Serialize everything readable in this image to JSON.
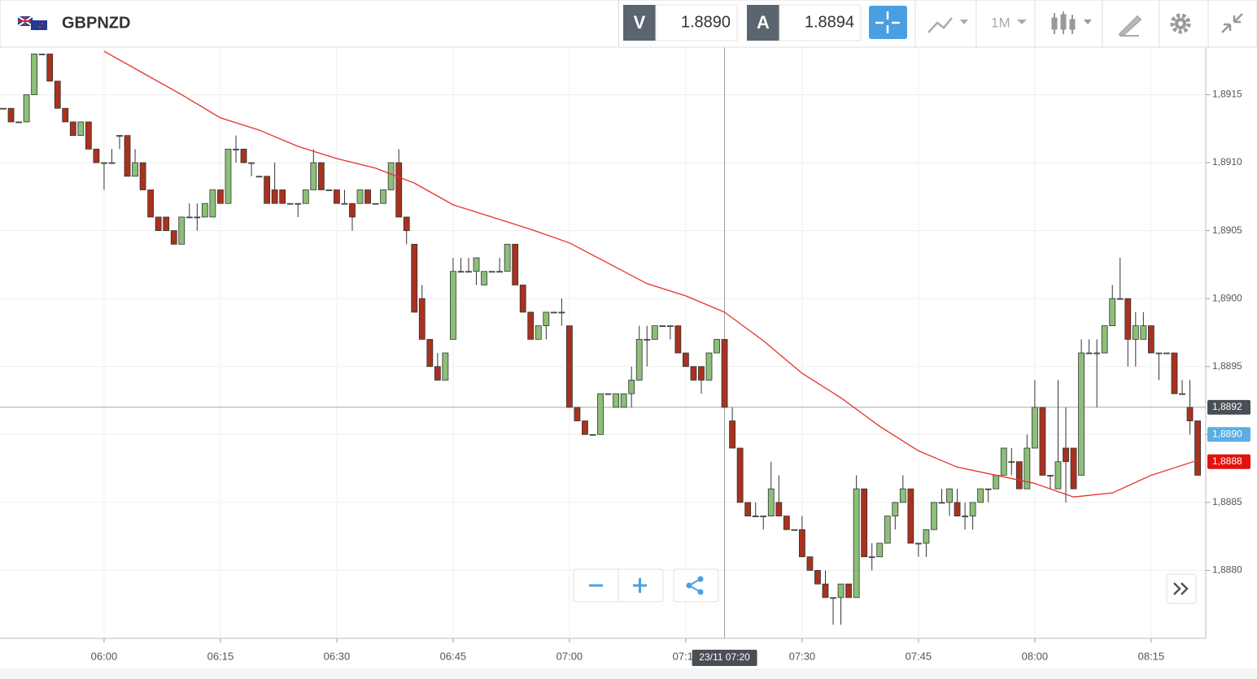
{
  "toolbar": {
    "symbol": "GBPNZD",
    "bid_label": "V",
    "bid": "1.8890",
    "ask_label": "A",
    "ask": "1.8894",
    "timeframe": "1M"
  },
  "chart_data": {
    "type": "candlestick",
    "up_color": "#8cbf78",
    "down_color": "#a8321f",
    "grid": true,
    "ylim": [
      1.8875,
      1.89185
    ],
    "yticks": [
      {
        "value": 1.888,
        "label": "1,8880"
      },
      {
        "value": 1.8885,
        "label": "1,8885"
      },
      {
        "value": 1.889,
        "label": "1,8890"
      },
      {
        "value": 1.8895,
        "label": "1,8895"
      },
      {
        "value": 1.89,
        "label": "1,8900"
      },
      {
        "value": 1.8905,
        "label": "1,8905"
      },
      {
        "value": 1.891,
        "label": "1,8910"
      },
      {
        "value": 1.8915,
        "label": "1,8915"
      }
    ],
    "xticks": [
      "06:00",
      "06:15",
      "06:30",
      "06:45",
      "07:00",
      "07:15",
      "07:30",
      "07:45",
      "08:00",
      "08:15"
    ],
    "x": [
      "05:47",
      "05:48",
      "05:49",
      "05:50",
      "05:51",
      "05:52",
      "05:53",
      "05:54",
      "05:55",
      "05:56",
      "05:57",
      "05:58",
      "05:59",
      "06:00",
      "06:01",
      "06:02",
      "06:03",
      "06:04",
      "06:05",
      "06:06",
      "06:07",
      "06:08",
      "06:09",
      "06:10",
      "06:11",
      "06:12",
      "06:13",
      "06:14",
      "06:15",
      "06:16",
      "06:17",
      "06:18",
      "06:19",
      "06:20",
      "06:21",
      "06:22",
      "06:23",
      "06:24",
      "06:25",
      "06:26",
      "06:27",
      "06:28",
      "06:29",
      "06:30",
      "06:31",
      "06:32",
      "06:33",
      "06:34",
      "06:35",
      "06:36",
      "06:37",
      "06:38",
      "06:39",
      "06:40",
      "06:41",
      "06:42",
      "06:43",
      "06:44",
      "06:45",
      "06:46",
      "06:47",
      "06:48",
      "06:49",
      "06:50",
      "06:51",
      "06:52",
      "06:53",
      "06:54",
      "06:55",
      "06:56",
      "06:57",
      "06:58",
      "06:59",
      "07:00",
      "07:01",
      "07:02",
      "07:03",
      "07:04",
      "07:05",
      "07:06",
      "07:07",
      "07:08",
      "07:09",
      "07:10",
      "07:11",
      "07:12",
      "07:13",
      "07:14",
      "07:15",
      "07:16",
      "07:17",
      "07:18",
      "07:19",
      "07:20",
      "07:21",
      "07:22",
      "07:23",
      "07:24",
      "07:25",
      "07:26",
      "07:27",
      "07:28",
      "07:29",
      "07:30",
      "07:31",
      "07:32",
      "07:33",
      "07:34",
      "07:35",
      "07:36",
      "07:37",
      "07:38",
      "07:39",
      "07:40",
      "07:41",
      "07:42",
      "07:43",
      "07:44",
      "07:45",
      "07:46",
      "07:47",
      "07:48",
      "07:49",
      "07:50",
      "07:51",
      "07:52",
      "07:53",
      "07:54",
      "07:55",
      "07:56",
      "07:57",
      "07:58",
      "07:59",
      "08:00",
      "08:01",
      "08:02",
      "08:03",
      "08:04",
      "08:05",
      "08:06",
      "08:07",
      "08:08",
      "08:09",
      "08:10",
      "08:11",
      "08:12",
      "08:13",
      "08:14",
      "08:15",
      "08:16",
      "08:17",
      "08:18",
      "08:19",
      "08:20",
      "08:21"
    ],
    "ohlc": [
      [
        1.8914,
        1.8914,
        1.8914,
        1.8914
      ],
      [
        1.8914,
        1.8914,
        1.8913,
        1.8913
      ],
      [
        1.8913,
        1.8913,
        1.8913,
        1.8913
      ],
      [
        1.8913,
        1.8915,
        1.8913,
        1.8915
      ],
      [
        1.8915,
        1.8918,
        1.8915,
        1.8918
      ],
      [
        1.8918,
        1.8918,
        1.8918,
        1.8918
      ],
      [
        1.8918,
        1.8918,
        1.8916,
        1.8916
      ],
      [
        1.8916,
        1.8916,
        1.8914,
        1.8914
      ],
      [
        1.8914,
        1.8914,
        1.8913,
        1.8913
      ],
      [
        1.8913,
        1.8913,
        1.8912,
        1.8912
      ],
      [
        1.8912,
        1.8913,
        1.8912,
        1.8913
      ],
      [
        1.8913,
        1.8913,
        1.8911,
        1.8911
      ],
      [
        1.8911,
        1.8911,
        1.891,
        1.891
      ],
      [
        1.891,
        1.891,
        1.8908,
        1.891
      ],
      [
        1.891,
        1.8911,
        1.891,
        1.891
      ],
      [
        1.8912,
        1.8912,
        1.8911,
        1.8912
      ],
      [
        1.8912,
        1.8912,
        1.8909,
        1.8909
      ],
      [
        1.8909,
        1.8911,
        1.8909,
        1.891
      ],
      [
        1.891,
        1.891,
        1.8908,
        1.8908
      ],
      [
        1.8908,
        1.8908,
        1.8906,
        1.8906
      ],
      [
        1.8906,
        1.8906,
        1.8905,
        1.8905
      ],
      [
        1.8906,
        1.8906,
        1.8905,
        1.8905
      ],
      [
        1.8905,
        1.8905,
        1.8904,
        1.8904
      ],
      [
        1.8904,
        1.8906,
        1.8904,
        1.8906
      ],
      [
        1.8906,
        1.8907,
        1.8906,
        1.8906
      ],
      [
        1.8906,
        1.8907,
        1.8905,
        1.8906
      ],
      [
        1.8906,
        1.8907,
        1.8906,
        1.8907
      ],
      [
        1.8906,
        1.8908,
        1.8906,
        1.8908
      ],
      [
        1.8908,
        1.8908,
        1.8907,
        1.8907
      ],
      [
        1.8907,
        1.8911,
        1.8907,
        1.8911
      ],
      [
        1.8911,
        1.8912,
        1.891,
        1.8911
      ],
      [
        1.8911,
        1.8911,
        1.891,
        1.891
      ],
      [
        1.891,
        1.891,
        1.8909,
        1.891
      ],
      [
        1.8909,
        1.8909,
        1.8909,
        1.8909
      ],
      [
        1.8909,
        1.8909,
        1.8907,
        1.8907
      ],
      [
        1.8908,
        1.891,
        1.8907,
        1.8907
      ],
      [
        1.8908,
        1.8908,
        1.8907,
        1.8907
      ],
      [
        1.8907,
        1.8907,
        1.8907,
        1.8907
      ],
      [
        1.8907,
        1.8907,
        1.8906,
        1.8907
      ],
      [
        1.8907,
        1.8908,
        1.8907,
        1.8908
      ],
      [
        1.8908,
        1.8911,
        1.8908,
        1.891
      ],
      [
        1.891,
        1.891,
        1.8908,
        1.8908
      ],
      [
        1.8908,
        1.8908,
        1.8908,
        1.8908
      ],
      [
        1.8908,
        1.8908,
        1.8907,
        1.8907
      ],
      [
        1.8907,
        1.8908,
        1.8907,
        1.8907
      ],
      [
        1.8907,
        1.8907,
        1.8905,
        1.8906
      ],
      [
        1.8907,
        1.8908,
        1.8907,
        1.8908
      ],
      [
        1.8908,
        1.8908,
        1.8907,
        1.8907
      ],
      [
        1.8907,
        1.8907,
        1.8907,
        1.8907
      ],
      [
        1.8907,
        1.8908,
        1.8907,
        1.8908
      ],
      [
        1.8908,
        1.891,
        1.8908,
        1.891
      ],
      [
        1.891,
        1.8911,
        1.8906,
        1.8906
      ],
      [
        1.8906,
        1.8906,
        1.8904,
        1.8905
      ],
      [
        1.8904,
        1.8904,
        1.8899,
        1.8899
      ],
      [
        1.89,
        1.8901,
        1.8897,
        1.8897
      ],
      [
        1.8897,
        1.8897,
        1.8895,
        1.8895
      ],
      [
        1.8895,
        1.8896,
        1.8894,
        1.8894
      ],
      [
        1.8894,
        1.8896,
        1.8894,
        1.8896
      ],
      [
        1.8897,
        1.8903,
        1.8897,
        1.8902
      ],
      [
        1.8902,
        1.8903,
        1.8902,
        1.8902
      ],
      [
        1.8902,
        1.8903,
        1.8902,
        1.8902
      ],
      [
        1.8902,
        1.8903,
        1.8901,
        1.8903
      ],
      [
        1.8901,
        1.8902,
        1.8901,
        1.8902
      ],
      [
        1.8902,
        1.8902,
        1.8902,
        1.8902
      ],
      [
        1.8902,
        1.8903,
        1.8902,
        1.8902
      ],
      [
        1.8902,
        1.8904,
        1.8902,
        1.8904
      ],
      [
        1.8904,
        1.8904,
        1.8901,
        1.8901
      ],
      [
        1.8901,
        1.8901,
        1.8899,
        1.8899
      ],
      [
        1.8899,
        1.8899,
        1.8897,
        1.8897
      ],
      [
        1.8897,
        1.8898,
        1.8897,
        1.8898
      ],
      [
        1.8898,
        1.8899,
        1.8897,
        1.8899
      ],
      [
        1.8899,
        1.8899,
        1.8899,
        1.8899
      ],
      [
        1.8899,
        1.89,
        1.8898,
        1.8899
      ],
      [
        1.8898,
        1.8898,
        1.8892,
        1.8892
      ],
      [
        1.8892,
        1.8892,
        1.8891,
        1.8891
      ],
      [
        1.8891,
        1.8891,
        1.889,
        1.889
      ],
      [
        1.889,
        1.889,
        1.889,
        1.889
      ],
      [
        1.889,
        1.8893,
        1.889,
        1.8893
      ],
      [
        1.8893,
        1.8893,
        1.8893,
        1.8893
      ],
      [
        1.8892,
        1.8893,
        1.8892,
        1.8893
      ],
      [
        1.8892,
        1.8893,
        1.8892,
        1.8893
      ],
      [
        1.8893,
        1.8895,
        1.8892,
        1.8894
      ],
      [
        1.8894,
        1.8898,
        1.8894,
        1.8897
      ],
      [
        1.8897,
        1.8898,
        1.8895,
        1.8897
      ],
      [
        1.8897,
        1.8898,
        1.8897,
        1.8898
      ],
      [
        1.8898,
        1.8898,
        1.8898,
        1.8898
      ],
      [
        1.8898,
        1.8898,
        1.8897,
        1.8898
      ],
      [
        1.8898,
        1.8898,
        1.8896,
        1.8896
      ],
      [
        1.8896,
        1.8896,
        1.8895,
        1.8895
      ],
      [
        1.8895,
        1.8895,
        1.8894,
        1.8894
      ],
      [
        1.8895,
        1.8895,
        1.8893,
        1.8894
      ],
      [
        1.8894,
        1.8896,
        1.8894,
        1.8896
      ],
      [
        1.8896,
        1.8897,
        1.8896,
        1.8897
      ],
      [
        1.8897,
        1.8897,
        1.8892,
        1.8892
      ],
      [
        1.8891,
        1.8892,
        1.8889,
        1.8889
      ],
      [
        1.8889,
        1.8889,
        1.8885,
        1.8885
      ],
      [
        1.8885,
        1.8885,
        1.8884,
        1.8884
      ],
      [
        1.8884,
        1.8885,
        1.8884,
        1.8884
      ],
      [
        1.8884,
        1.8884,
        1.8883,
        1.8884
      ],
      [
        1.8884,
        1.8888,
        1.8884,
        1.8886
      ],
      [
        1.8885,
        1.8887,
        1.8884,
        1.8884
      ],
      [
        1.8884,
        1.8884,
        1.8883,
        1.8883
      ],
      [
        1.8883,
        1.8883,
        1.8883,
        1.8883
      ],
      [
        1.8883,
        1.8884,
        1.8881,
        1.8881
      ],
      [
        1.8881,
        1.8881,
        1.888,
        1.888
      ],
      [
        1.888,
        1.888,
        1.8879,
        1.8879
      ],
      [
        1.8879,
        1.888,
        1.8878,
        1.8878
      ],
      [
        1.8878,
        1.8878,
        1.8876,
        1.8878
      ],
      [
        1.8878,
        1.8879,
        1.8876,
        1.8879
      ],
      [
        1.8879,
        1.8879,
        1.8878,
        1.8878
      ],
      [
        1.8878,
        1.8887,
        1.8878,
        1.8886
      ],
      [
        1.8886,
        1.8886,
        1.8881,
        1.8881
      ],
      [
        1.8881,
        1.8882,
        1.888,
        1.8881
      ],
      [
        1.8881,
        1.8882,
        1.8881,
        1.8882
      ],
      [
        1.8882,
        1.8884,
        1.8882,
        1.8884
      ],
      [
        1.8884,
        1.8885,
        1.8883,
        1.8885
      ],
      [
        1.8885,
        1.8887,
        1.8885,
        1.8886
      ],
      [
        1.8886,
        1.8886,
        1.8882,
        1.8882
      ],
      [
        1.8882,
        1.8882,
        1.8881,
        1.8882
      ],
      [
        1.8882,
        1.8883,
        1.8881,
        1.8883
      ],
      [
        1.8883,
        1.8885,
        1.8883,
        1.8885
      ],
      [
        1.8885,
        1.8886,
        1.8885,
        1.8885
      ],
      [
        1.8885,
        1.8886,
        1.8884,
        1.8886
      ],
      [
        1.8885,
        1.8886,
        1.8884,
        1.8884
      ],
      [
        1.8884,
        1.8885,
        1.8883,
        1.8884
      ],
      [
        1.8884,
        1.8885,
        1.8883,
        1.8885
      ],
      [
        1.8885,
        1.8886,
        1.8885,
        1.8886
      ],
      [
        1.8886,
        1.8886,
        1.8885,
        1.8886
      ],
      [
        1.8886,
        1.8887,
        1.8886,
        1.8887
      ],
      [
        1.8887,
        1.8889,
        1.8887,
        1.8889
      ],
      [
        1.8888,
        1.8889,
        1.8887,
        1.8888
      ],
      [
        1.8888,
        1.8888,
        1.8886,
        1.8886
      ],
      [
        1.8886,
        1.889,
        1.8886,
        1.8889
      ],
      [
        1.8889,
        1.8894,
        1.8889,
        1.8892
      ],
      [
        1.8892,
        1.8892,
        1.8887,
        1.8887
      ],
      [
        1.8887,
        1.8887,
        1.8886,
        1.8887
      ],
      [
        1.8886,
        1.8894,
        1.8886,
        1.8888
      ],
      [
        1.8889,
        1.8892,
        1.8885,
        1.8888
      ],
      [
        1.8889,
        1.8889,
        1.8886,
        1.8886
      ],
      [
        1.8887,
        1.8897,
        1.8887,
        1.8896
      ],
      [
        1.8896,
        1.8897,
        1.8896,
        1.8896
      ],
      [
        1.8896,
        1.8897,
        1.8892,
        1.8896
      ],
      [
        1.8896,
        1.8898,
        1.8896,
        1.8898
      ],
      [
        1.8898,
        1.8901,
        1.8898,
        1.89
      ],
      [
        1.89,
        1.8903,
        1.89,
        1.89
      ],
      [
        1.89,
        1.89,
        1.8895,
        1.8897
      ],
      [
        1.8897,
        1.8899,
        1.8895,
        1.8898
      ],
      [
        1.8897,
        1.8899,
        1.8897,
        1.8898
      ],
      [
        1.8898,
        1.8898,
        1.8896,
        1.8896
      ],
      [
        1.8896,
        1.8896,
        1.8894,
        1.8896
      ],
      [
        1.8896,
        1.8896,
        1.8896,
        1.8896
      ],
      [
        1.8896,
        1.8896,
        1.8893,
        1.8893
      ],
      [
        1.8893,
        1.8894,
        1.8893,
        1.8893
      ],
      [
        1.8892,
        1.8894,
        1.889,
        1.8891
      ],
      [
        1.8891,
        1.8891,
        1.8887,
        1.8887
      ]
    ],
    "moving_average": {
      "color": "#e8302a",
      "x": [
        "06:00",
        "06:05",
        "06:10",
        "06:15",
        "06:20",
        "06:25",
        "06:30",
        "06:35",
        "06:40",
        "06:45",
        "06:50",
        "06:55",
        "07:00",
        "07:05",
        "07:10",
        "07:15",
        "07:20",
        "07:25",
        "07:30",
        "07:35",
        "07:40",
        "07:45",
        "07:50",
        "07:55",
        "08:00",
        "08:05",
        "08:10",
        "08:15",
        "08:21"
      ],
      "values": [
        1.89182,
        1.89166,
        1.8915,
        1.89133,
        1.89124,
        1.89112,
        1.89103,
        1.89096,
        1.89085,
        1.89069,
        1.8906,
        1.89051,
        1.89041,
        1.89026,
        1.89011,
        1.89002,
        1.8899,
        1.88969,
        1.88945,
        1.88927,
        1.88906,
        1.88888,
        1.88876,
        1.8887,
        1.88864,
        1.88854,
        1.88857,
        1.8887,
        1.88881
      ]
    },
    "crosshair": {
      "x": "07:20",
      "label": "23/11 07:20",
      "y": 1.8892
    },
    "price_tags": [
      {
        "value": 1.8892,
        "label": "1,8892",
        "color": "#4a4f55"
      },
      {
        "value": 1.889,
        "label": "1,8890",
        "color": "#5aaee4"
      },
      {
        "value": 1.8888,
        "label": "1,8888",
        "color": "#e3120b"
      }
    ]
  }
}
